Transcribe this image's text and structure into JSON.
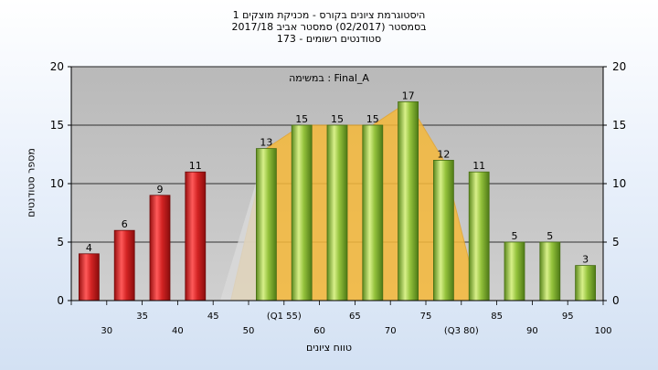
{
  "title_lines": [
    "היסטוגרמת ציונים בקורס - מכניקת מוצקים 1",
    "בסמסטר  (02/2017)  סמסטר אביב 2017/18",
    "173 - סטודנטים רשומים"
  ],
  "colors": {
    "fail_bar": "#d42424",
    "pass_bar": "#94c23c",
    "area_fill": "#f6b93a",
    "plot_bg": "#c0c0c0",
    "grid": "#000000"
  },
  "chart_data": {
    "type": "bar",
    "title": "היסטוגרמת ציונים בקורס - מכניקת מוצקים 1",
    "caption": "במשימה : Final_A",
    "xlabel": "טווח ציונים",
    "ylabel": "מספר סטודנטים",
    "ylim": [
      0,
      20
    ],
    "yticks": [
      0,
      5,
      10,
      15,
      20
    ],
    "grid": true,
    "categories": [
      {
        "lower": "30",
        "upper": "35",
        "value": 4,
        "group": "fail"
      },
      {
        "lower": "",
        "upper": "40",
        "value": 6,
        "group": "fail"
      },
      {
        "lower": "",
        "upper": "45",
        "value": 9,
        "group": "fail"
      },
      {
        "lower": "",
        "upper": "50",
        "value": 11,
        "group": "fail"
      },
      {
        "lower": "",
        "upper": "(Q1 55)",
        "value": null,
        "group": "empty"
      },
      {
        "lower": "",
        "upper": "60",
        "value": 13,
        "group": "pass"
      },
      {
        "lower": "",
        "upper": "65",
        "value": 15,
        "group": "pass"
      },
      {
        "lower": "",
        "upper": "70",
        "value": 15,
        "group": "pass"
      },
      {
        "lower": "",
        "upper": "75",
        "value": 15,
        "group": "pass"
      },
      {
        "lower": "",
        "upper": "(Q3 80)",
        "value": 17,
        "group": "pass"
      },
      {
        "lower": "",
        "upper": "85",
        "value": 12,
        "group": "pass"
      },
      {
        "lower": "",
        "upper": "90",
        "value": 11,
        "group": "pass"
      },
      {
        "lower": "",
        "upper": "95",
        "value": 5,
        "group": "pass"
      },
      {
        "lower": "",
        "upper": "100",
        "value": 5,
        "group": "pass"
      },
      {
        "lower": "",
        "upper": "",
        "value": 3,
        "group": "pass"
      }
    ],
    "area_values": [
      0,
      0,
      0,
      0,
      0,
      13,
      15,
      15,
      15,
      17,
      12,
      0,
      0,
      0,
      0
    ],
    "tick_labels_row1": [
      "35",
      "45",
      "(Q1 55)",
      "65",
      "75",
      "85",
      "95"
    ],
    "tick_labels_row2": [
      "30",
      "40",
      "50",
      "60",
      "70",
      "(Q3 80)",
      "90",
      "100"
    ]
  }
}
